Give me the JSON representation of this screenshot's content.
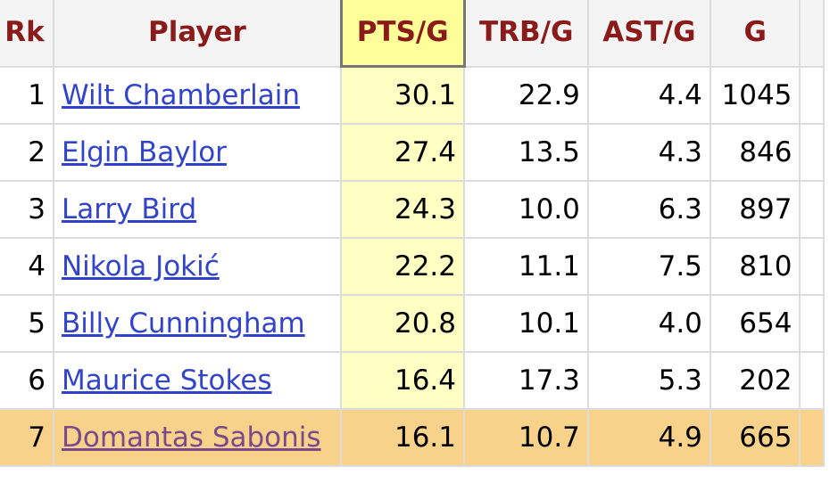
{
  "table": {
    "header": [
      "Rk",
      "Player",
      "PTS/G",
      "TRB/G",
      "AST/G",
      "G"
    ],
    "rows": [
      [
        "1",
        "Wilt Chamberlain",
        "30.1",
        "22.9",
        "4.4",
        "1045"
      ],
      [
        "2",
        "Elgin Baylor",
        "27.4",
        "13.5",
        "4.3",
        "846"
      ],
      [
        "3",
        "Larry Bird",
        "24.3",
        "10.0",
        "6.3",
        "897"
      ],
      [
        "4",
        "Nikola Jokić",
        "22.2",
        "11.1",
        "7.5",
        "810"
      ],
      [
        "5",
        "Billy Cunningham",
        "20.8",
        "10.1",
        "4.0",
        "654"
      ],
      [
        "6",
        "Maurice Stokes",
        "16.4",
        "17.3",
        "5.3",
        "202"
      ],
      [
        "7",
        "Domantas Sabonis",
        "16.1",
        "10.7",
        "4.9",
        "665"
      ]
    ]
  }
}
